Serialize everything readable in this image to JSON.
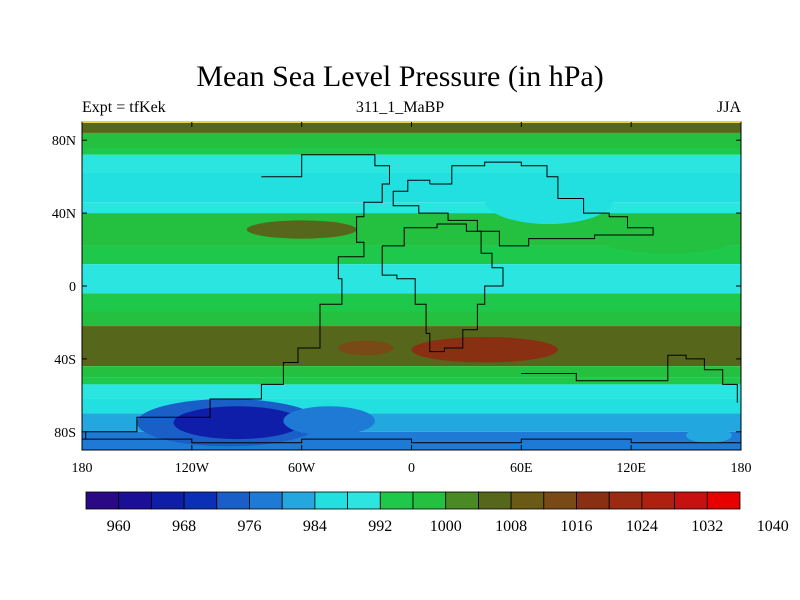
{
  "header": {
    "title": "Mean Sea Level Pressure (in hPa)",
    "left_label": "Expt = tfKek",
    "center_label": "311_1_MaBP",
    "right_label": "JJA"
  },
  "colors": {
    "palette": [
      "#2a0a84",
      "#1a0f96",
      "#0f1ea8",
      "#0a30b8",
      "#1a5ec8",
      "#1f7ad6",
      "#22a8df",
      "#22e0e0",
      "#2be6e0",
      "#1ec84a",
      "#24c040",
      "#4a8a24",
      "#56661a",
      "#6a5a16",
      "#7a4a16",
      "#8a3012",
      "#9a2a12",
      "#b02010",
      "#c81010",
      "#e80000"
    ],
    "coastline": "#000000"
  },
  "chart_data": {
    "type": "heatmap",
    "title": "Mean Sea Level Pressure (in hPa)",
    "xlim": [
      -180,
      180
    ],
    "ylim": [
      -90,
      90
    ],
    "x_ticks": [
      {
        "value": -180,
        "label": "180"
      },
      {
        "value": -120,
        "label": "120W"
      },
      {
        "value": -60,
        "label": "60W"
      },
      {
        "value": 0,
        "label": "0"
      },
      {
        "value": 60,
        "label": "60E"
      },
      {
        "value": 120,
        "label": "120E"
      },
      {
        "value": 180,
        "label": "180"
      }
    ],
    "y_ticks": [
      {
        "value": 80,
        "label": "80N"
      },
      {
        "value": 40,
        "label": "40N"
      },
      {
        "value": 0,
        "label": "0"
      },
      {
        "value": -40,
        "label": "40S"
      },
      {
        "value": -80,
        "label": "80S"
      }
    ],
    "colorbar": {
      "levels": [
        956,
        960,
        964,
        968,
        972,
        976,
        980,
        984,
        988,
        992,
        996,
        1000,
        1004,
        1008,
        1012,
        1016,
        1020,
        1024,
        1028,
        1032,
        1036,
        1040,
        1044
      ],
      "labels": [
        "960",
        "968",
        "976",
        "984",
        "992",
        "1000",
        "1008",
        "1016",
        "1024",
        "1032",
        "1040"
      ]
    },
    "bands": [
      {
        "lat": [
          84,
          90
        ],
        "value": 1006
      },
      {
        "lat": [
          76,
          84
        ],
        "value": 998
      },
      {
        "lat": [
          72,
          76
        ],
        "value": 994
      },
      {
        "lat": [
          62,
          72
        ],
        "value": 990
      },
      {
        "lat": [
          46,
          62
        ],
        "value": 986
      },
      {
        "lat": [
          40,
          46
        ],
        "value": 990
      },
      {
        "lat": [
          22,
          40
        ],
        "value": 998
      },
      {
        "lat": [
          12,
          22
        ],
        "value": 994
      },
      {
        "lat": [
          -4,
          12
        ],
        "value": 990
      },
      {
        "lat": [
          -14,
          -4
        ],
        "value": 994
      },
      {
        "lat": [
          -22,
          -14
        ],
        "value": 998
      },
      {
        "lat": [
          -44,
          -22
        ],
        "value": 1006
      },
      {
        "lat": [
          -50,
          -44
        ],
        "value": 998
      },
      {
        "lat": [
          -54,
          -50
        ],
        "value": 994
      },
      {
        "lat": [
          -62,
          -54
        ],
        "value": 990
      },
      {
        "lat": [
          -70,
          -62
        ],
        "value": 986
      },
      {
        "lat": [
          -80,
          -70
        ],
        "value": 982
      },
      {
        "lat": [
          -90,
          -80
        ],
        "value": 976
      }
    ],
    "features": [
      {
        "lon": [
          -90,
          -30
        ],
        "lat": [
          26,
          36
        ],
        "value": 1006
      },
      {
        "lon": [
          100,
          180
        ],
        "lat": [
          18,
          36
        ],
        "value": 998
      },
      {
        "lon": [
          40,
          110
        ],
        "lat": [
          34,
          60
        ],
        "value": 986
      },
      {
        "lon": [
          0,
          80
        ],
        "lat": [
          -42,
          -28
        ],
        "value": 1016
      },
      {
        "lon": [
          -40,
          -10
        ],
        "lat": [
          -38,
          -30
        ],
        "value": 1012
      },
      {
        "lon": [
          -150,
          -50
        ],
        "lat": [
          -88,
          -62
        ],
        "value": 972
      },
      {
        "lon": [
          -130,
          -60
        ],
        "lat": [
          -84,
          -66
        ],
        "value": 964
      },
      {
        "lon": [
          -70,
          -20
        ],
        "lat": [
          -82,
          -66
        ],
        "value": 976
      },
      {
        "lon": [
          150,
          175
        ],
        "lat": [
          -86,
          -78
        ],
        "value": 982
      }
    ]
  }
}
